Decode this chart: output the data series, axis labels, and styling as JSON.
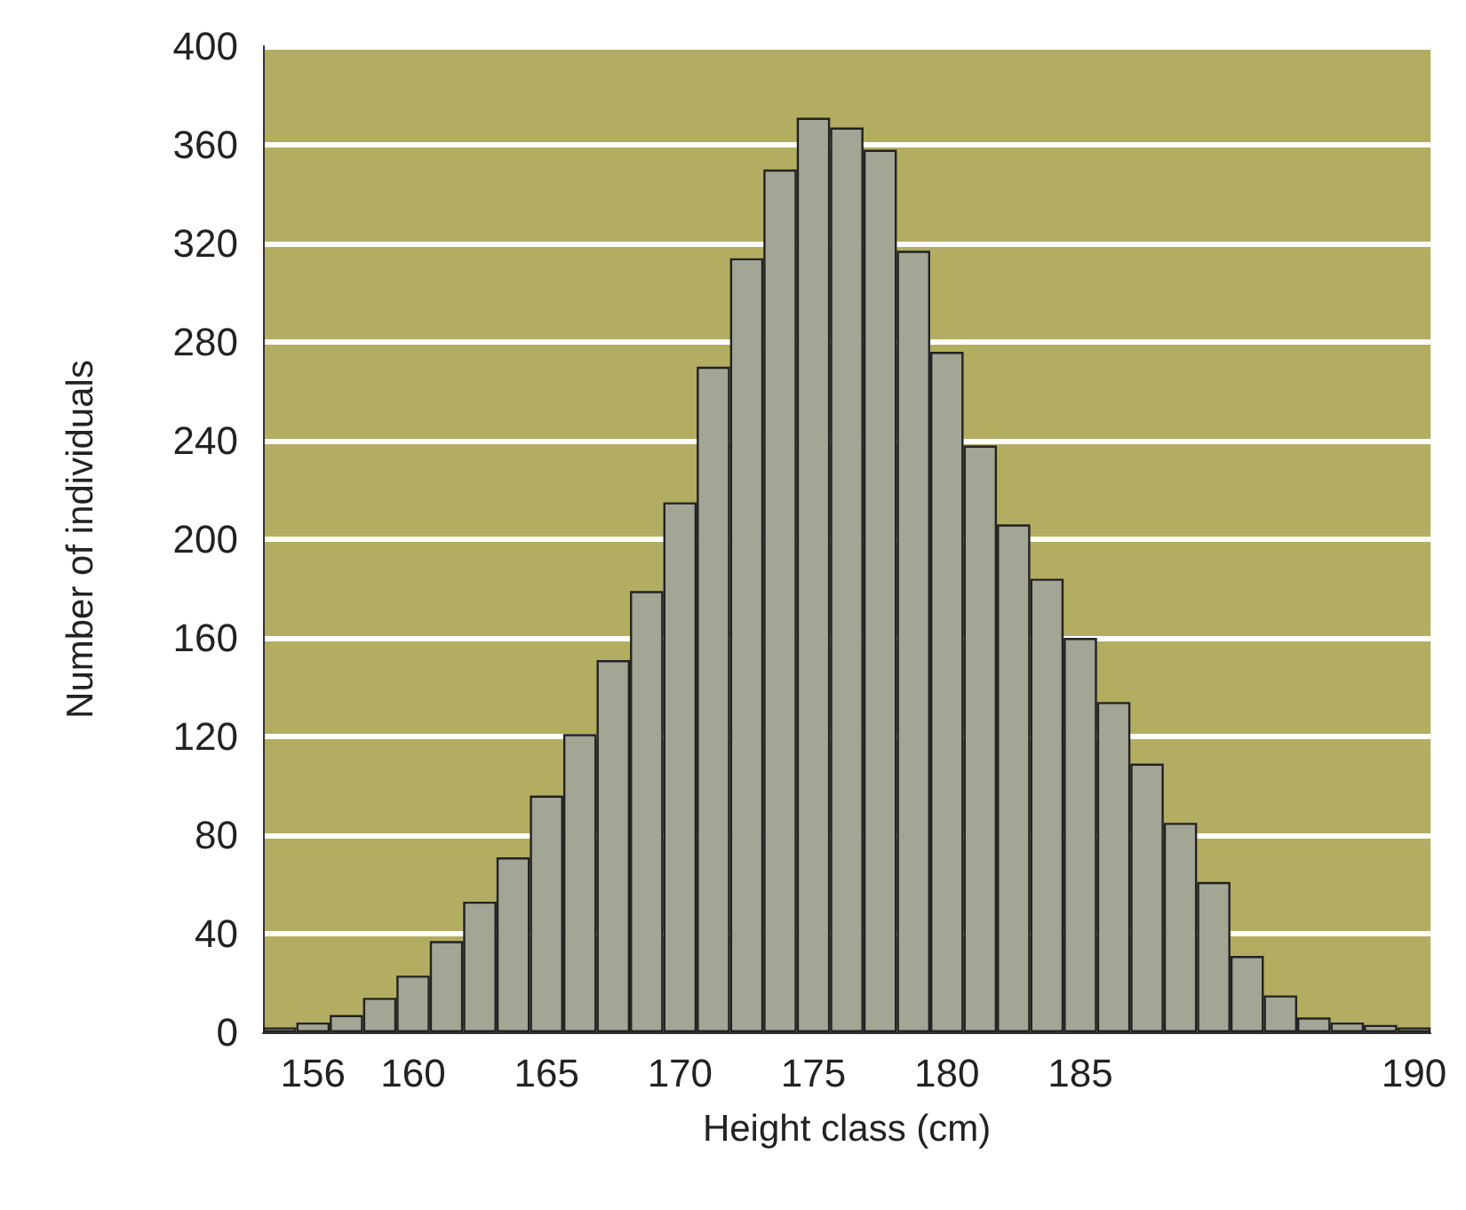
{
  "chart_data": {
    "type": "bar",
    "xlabel": "Height class (cm)",
    "ylabel": "Number of individuals",
    "categories": [
      null,
      "156",
      null,
      null,
      "160",
      null,
      null,
      null,
      "165",
      null,
      null,
      null,
      "170",
      null,
      null,
      null,
      "175",
      null,
      null,
      null,
      "180",
      null,
      null,
      null,
      "185",
      null,
      null,
      null,
      null,
      null,
      null,
      null,
      null,
      null,
      "190"
    ],
    "values": [
      2,
      4,
      7,
      14,
      23,
      37,
      53,
      71,
      96,
      121,
      151,
      179,
      215,
      270,
      314,
      350,
      371,
      367,
      358,
      317,
      276,
      238,
      206,
      184,
      160,
      134,
      109,
      85,
      61,
      31,
      15,
      6,
      4,
      3,
      2
    ],
    "color": "#a3a595",
    "ylim": [
      0,
      400
    ],
    "yticks": [
      0,
      40,
      80,
      120,
      160,
      200,
      240,
      280,
      320,
      360,
      400
    ],
    "grid": "y"
  }
}
